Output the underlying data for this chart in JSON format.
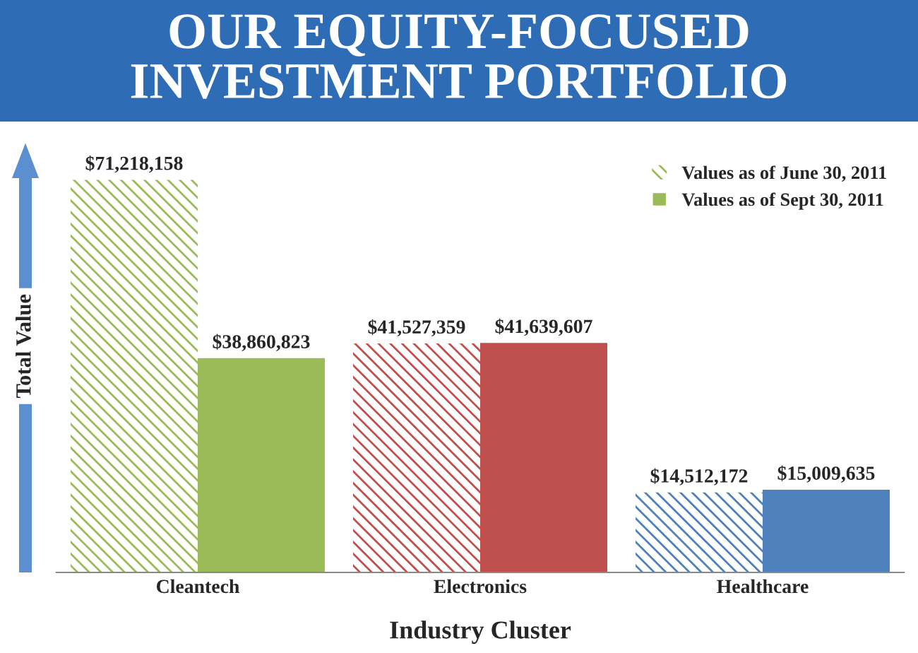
{
  "chart_data": {
    "type": "bar",
    "title": "OUR EQUITY-FOCUSED\nINVESTMENT PORTFOLIO",
    "xlabel": "Industry Cluster",
    "ylabel": "Total Value",
    "categories": [
      "Cleantech",
      "Electronics",
      "Healthcare"
    ],
    "series": [
      {
        "name": "Values as of June 30, 2011",
        "color": "#9bbb59",
        "colors": [
          "#9bbb59",
          "#c0504d",
          "#4f81bd"
        ],
        "values": [
          71218158,
          41527359,
          14512172
        ],
        "value_labels": [
          "$71,218,158",
          "$41,527,359",
          "$14,512,172"
        ]
      },
      {
        "name": "Values as of Sept 30, 2011",
        "color": "#9bbb59",
        "colors": [
          "#9bbb59",
          "#c0504d",
          "#4f81bd"
        ],
        "values": [
          38860823,
          41639607,
          15009635
        ],
        "value_labels": [
          "$38,860,823",
          "$41,639,607",
          "$15,009,635"
        ]
      }
    ],
    "legend": "top right",
    "grid": false
  }
}
